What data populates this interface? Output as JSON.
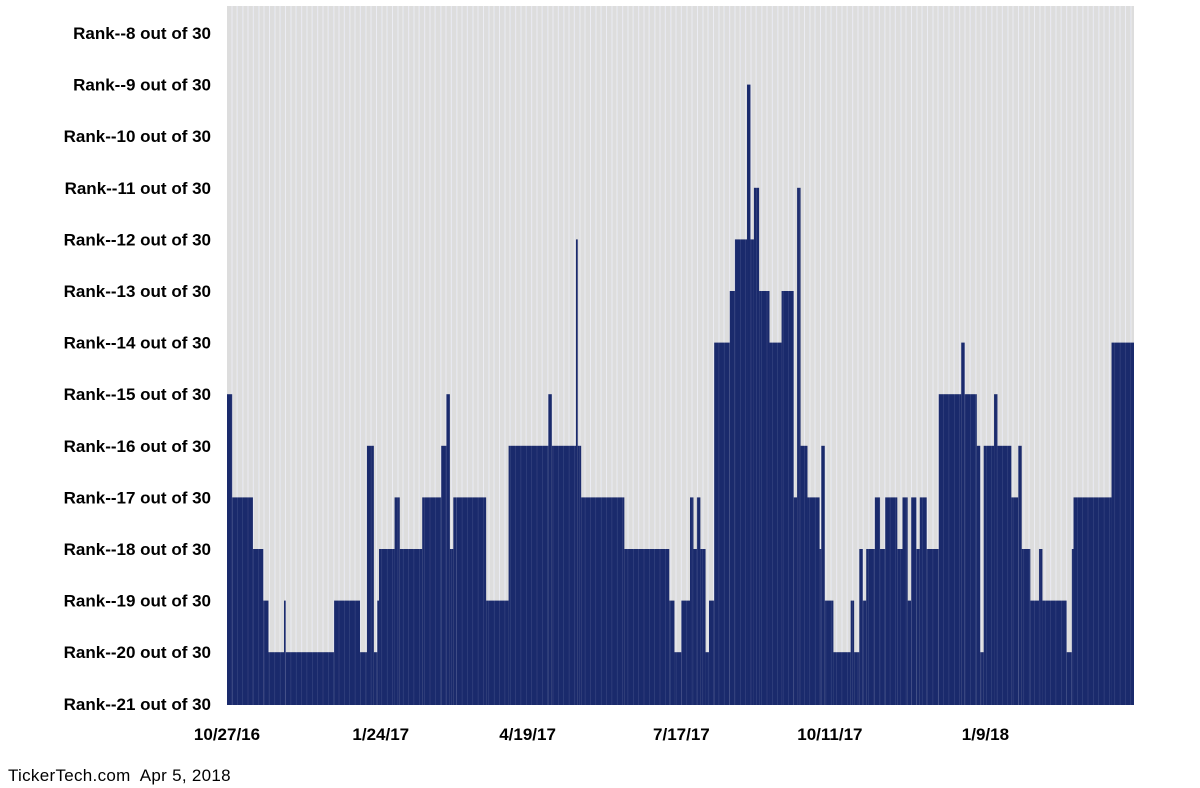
{
  "chart_data": {
    "type": "bar",
    "title": "",
    "xlabel": "",
    "ylabel": "",
    "y_tick_labels": [
      "Rank--8 out of 30",
      "Rank--9 out of 30",
      "Rank--10 out of 30",
      "Rank--11 out of 30",
      "Rank--12 out of 30",
      "Rank--13 out of 30",
      "Rank--14 out of 30",
      "Rank--15 out of 30",
      "Rank--16 out of 30",
      "Rank--17 out of 30",
      "Rank--18 out of 30",
      "Rank--19 out of 30",
      "Rank--20 out of 30",
      "Rank--21 out of 30"
    ],
    "y_rank_range": [
      8,
      21
    ],
    "y_inverted": true,
    "x_tick_labels": [
      "10/27/16",
      "1/24/17",
      "4/19/17",
      "7/17/17",
      "10/11/17",
      "1/9/18"
    ],
    "x_range": [
      "10/27/16",
      "4/5/18"
    ],
    "grid": "vertical",
    "bar_color": "#1a2a6c",
    "background_color": "#dddddd",
    "segments": [
      {
        "from": "10/27/16",
        "to": "10/30/16",
        "rank": 15
      },
      {
        "from": "10/30/16",
        "to": "11/11/16",
        "rank": 17
      },
      {
        "from": "11/11/16",
        "to": "11/17/16",
        "rank": 18
      },
      {
        "from": "11/17/16",
        "to": "11/20/16",
        "rank": 19
      },
      {
        "from": "11/20/16",
        "to": "11/29/16",
        "rank": 20
      },
      {
        "from": "11/29/16",
        "to": "11/30/16",
        "rank": 19
      },
      {
        "from": "11/30/16",
        "to": "12/28/16",
        "rank": 20
      },
      {
        "from": "12/28/16",
        "to": "1/12/17",
        "rank": 19
      },
      {
        "from": "1/12/17",
        "to": "1/16/17",
        "rank": 20
      },
      {
        "from": "1/16/17",
        "to": "1/20/17",
        "rank": 16
      },
      {
        "from": "1/20/17",
        "to": "1/22/17",
        "rank": 20
      },
      {
        "from": "1/22/17",
        "to": "1/23/17",
        "rank": 19
      },
      {
        "from": "1/23/17",
        "to": "2/1/17",
        "rank": 18
      },
      {
        "from": "2/1/17",
        "to": "2/4/17",
        "rank": 17
      },
      {
        "from": "2/4/17",
        "to": "2/17/17",
        "rank": 18
      },
      {
        "from": "2/17/17",
        "to": "2/28/17",
        "rank": 17
      },
      {
        "from": "2/28/17",
        "to": "3/3/17",
        "rank": 16
      },
      {
        "from": "3/3/17",
        "to": "3/5/17",
        "rank": 15
      },
      {
        "from": "3/5/17",
        "to": "3/7/17",
        "rank": 18
      },
      {
        "from": "3/7/17",
        "to": "3/9/17",
        "rank": 17
      },
      {
        "from": "3/9/17",
        "to": "3/26/17",
        "rank": 17
      },
      {
        "from": "3/26/17",
        "to": "4/8/17",
        "rank": 19
      },
      {
        "from": "4/8/17",
        "to": "5/1/17",
        "rank": 16
      },
      {
        "from": "5/1/17",
        "to": "5/3/17",
        "rank": 15
      },
      {
        "from": "5/3/17",
        "to": "5/17/17",
        "rank": 16
      },
      {
        "from": "5/17/17",
        "to": "5/18/17",
        "rank": 12
      },
      {
        "from": "5/18/17",
        "to": "5/20/17",
        "rank": 16
      },
      {
        "from": "5/20/17",
        "to": "6/14/17",
        "rank": 17
      },
      {
        "from": "6/14/17",
        "to": "7/10/17",
        "rank": 18
      },
      {
        "from": "7/10/17",
        "to": "7/13/17",
        "rank": 19
      },
      {
        "from": "7/13/17",
        "to": "7/17/17",
        "rank": 20
      },
      {
        "from": "7/17/17",
        "to": "7/22/17",
        "rank": 19
      },
      {
        "from": "7/22/17",
        "to": "7/24/17",
        "rank": 17
      },
      {
        "from": "7/24/17",
        "to": "7/26/17",
        "rank": 18
      },
      {
        "from": "7/26/17",
        "to": "7/28/17",
        "rank": 17
      },
      {
        "from": "7/28/17",
        "to": "7/31/17",
        "rank": 18
      },
      {
        "from": "7/31/17",
        "to": "8/2/17",
        "rank": 20
      },
      {
        "from": "8/2/17",
        "to": "8/5/17",
        "rank": 19
      },
      {
        "from": "8/5/17",
        "to": "8/14/17",
        "rank": 14
      },
      {
        "from": "8/14/17",
        "to": "8/17/17",
        "rank": 13
      },
      {
        "from": "8/17/17",
        "to": "8/24/17",
        "rank": 12
      },
      {
        "from": "8/24/17",
        "to": "8/26/17",
        "rank": 9
      },
      {
        "from": "8/26/17",
        "to": "8/28/17",
        "rank": 12
      },
      {
        "from": "8/28/17",
        "to": "8/31/17",
        "rank": 11
      },
      {
        "from": "8/31/17",
        "to": "9/6/17",
        "rank": 13
      },
      {
        "from": "9/6/17",
        "to": "9/13/17",
        "rank": 14
      },
      {
        "from": "9/13/17",
        "to": "9/20/17",
        "rank": 13
      },
      {
        "from": "9/20/17",
        "to": "9/22/17",
        "rank": 17
      },
      {
        "from": "9/22/17",
        "to": "9/24/17",
        "rank": 11
      },
      {
        "from": "9/24/17",
        "to": "9/28/17",
        "rank": 16
      },
      {
        "from": "9/28/17",
        "to": "10/5/17",
        "rank": 17
      },
      {
        "from": "10/5/17",
        "to": "10/6/17",
        "rank": 18
      },
      {
        "from": "10/6/17",
        "to": "10/8/17",
        "rank": 16
      },
      {
        "from": "10/8/17",
        "to": "10/13/17",
        "rank": 19
      },
      {
        "from": "10/13/17",
        "to": "10/23/17",
        "rank": 20
      },
      {
        "from": "10/23/17",
        "to": "10/25/17",
        "rank": 19
      },
      {
        "from": "10/25/17",
        "to": "10/28/17",
        "rank": 20
      },
      {
        "from": "10/28/17",
        "to": "10/30/17",
        "rank": 18
      },
      {
        "from": "10/30/17",
        "to": "11/1/17",
        "rank": 19
      },
      {
        "from": "11/1/17",
        "to": "11/6/17",
        "rank": 18
      },
      {
        "from": "11/6/17",
        "to": "11/9/17",
        "rank": 17
      },
      {
        "from": "11/9/17",
        "to": "11/12/17",
        "rank": 18
      },
      {
        "from": "11/12/17",
        "to": "11/19/17",
        "rank": 17
      },
      {
        "from": "11/19/17",
        "to": "11/22/17",
        "rank": 18
      },
      {
        "from": "11/22/17",
        "to": "11/25/17",
        "rank": 17
      },
      {
        "from": "11/25/17",
        "to": "11/27/17",
        "rank": 19
      },
      {
        "from": "11/27/17",
        "to": "11/30/17",
        "rank": 17
      },
      {
        "from": "11/30/17",
        "to": "12/2/17",
        "rank": 18
      },
      {
        "from": "12/2/17",
        "to": "12/6/17",
        "rank": 17
      },
      {
        "from": "12/6/17",
        "to": "12/13/17",
        "rank": 18
      },
      {
        "from": "12/13/17",
        "to": "12/26/17",
        "rank": 15
      },
      {
        "from": "12/26/17",
        "to": "12/28/17",
        "rank": 14
      },
      {
        "from": "12/28/17",
        "to": "1/4/18",
        "rank": 15
      },
      {
        "from": "1/4/18",
        "to": "1/6/18",
        "rank": 16
      },
      {
        "from": "1/6/18",
        "to": "1/8/18",
        "rank": 20
      },
      {
        "from": "1/8/18",
        "to": "1/14/18",
        "rank": 16
      },
      {
        "from": "1/14/18",
        "to": "1/16/18",
        "rank": 15
      },
      {
        "from": "1/16/18",
        "to": "1/24/18",
        "rank": 16
      },
      {
        "from": "1/24/18",
        "to": "1/28/18",
        "rank": 17
      },
      {
        "from": "1/28/18",
        "to": "1/30/18",
        "rank": 16
      },
      {
        "from": "1/30/18",
        "to": "2/4/18",
        "rank": 18
      },
      {
        "from": "2/4/18",
        "to": "2/9/18",
        "rank": 19
      },
      {
        "from": "2/9/18",
        "to": "2/11/18",
        "rank": 18
      },
      {
        "from": "2/11/18",
        "to": "2/25/18",
        "rank": 19
      },
      {
        "from": "2/25/18",
        "to": "2/28/18",
        "rank": 20
      },
      {
        "from": "2/28/18",
        "to": "3/1/18",
        "rank": 18
      },
      {
        "from": "3/1/18",
        "to": "3/23/18",
        "rank": 17
      },
      {
        "from": "3/23/18",
        "to": "4/5/18",
        "rank": 14
      }
    ]
  },
  "footer": {
    "source": "TickerTech.com",
    "date": "Apr 5, 2018"
  }
}
